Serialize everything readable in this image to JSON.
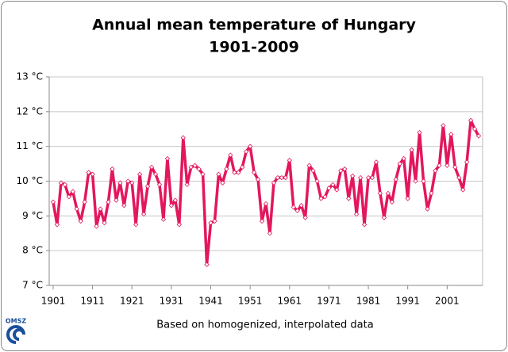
{
  "chart_data": {
    "type": "line",
    "title": "Annual mean temperature of Hungary",
    "subtitle": "1901-2009",
    "x_label": "Based on homogenized, interpolated data",
    "logo": "OMSZ",
    "x": [
      1901,
      1902,
      1903,
      1904,
      1905,
      1906,
      1907,
      1908,
      1909,
      1910,
      1911,
      1912,
      1913,
      1914,
      1915,
      1916,
      1917,
      1918,
      1919,
      1920,
      1921,
      1922,
      1923,
      1924,
      1925,
      1926,
      1927,
      1928,
      1929,
      1930,
      1931,
      1932,
      1933,
      1934,
      1935,
      1936,
      1937,
      1938,
      1939,
      1940,
      1941,
      1942,
      1943,
      1944,
      1945,
      1946,
      1947,
      1948,
      1949,
      1950,
      1951,
      1952,
      1953,
      1954,
      1955,
      1956,
      1957,
      1958,
      1959,
      1960,
      1961,
      1962,
      1963,
      1964,
      1965,
      1966,
      1967,
      1968,
      1969,
      1970,
      1971,
      1972,
      1973,
      1974,
      1975,
      1976,
      1977,
      1978,
      1979,
      1980,
      1981,
      1982,
      1983,
      1984,
      1985,
      1986,
      1987,
      1988,
      1989,
      1990,
      1991,
      1992,
      1993,
      1994,
      1995,
      1996,
      1997,
      1998,
      1999,
      2000,
      2001,
      2002,
      2003,
      2004,
      2005,
      2006,
      2007,
      2008,
      2009
    ],
    "series": [
      {
        "name": "Annual mean temperature",
        "color": "#e3175e",
        "values": [
          9.4,
          8.75,
          9.95,
          9.9,
          9.55,
          9.7,
          9.2,
          8.85,
          9.4,
          10.25,
          10.2,
          8.7,
          9.2,
          8.8,
          9.4,
          10.35,
          9.45,
          9.95,
          9.3,
          10.0,
          9.95,
          8.75,
          10.2,
          9.05,
          9.85,
          10.4,
          10.2,
          9.9,
          8.9,
          10.65,
          9.3,
          9.45,
          8.75,
          11.25,
          9.9,
          10.4,
          10.45,
          10.35,
          10.2,
          7.6,
          8.8,
          8.85,
          10.2,
          9.95,
          10.35,
          10.75,
          10.25,
          10.25,
          10.4,
          10.85,
          11.0,
          10.25,
          10.05,
          8.85,
          9.35,
          8.5,
          9.95,
          10.1,
          10.1,
          10.1,
          10.6,
          9.25,
          9.15,
          9.3,
          8.95,
          10.45,
          10.3,
          10.0,
          9.5,
          9.55,
          9.8,
          9.9,
          9.75,
          10.3,
          10.35,
          9.5,
          10.15,
          9.05,
          10.1,
          8.75,
          10.1,
          10.1,
          10.55,
          9.65,
          8.95,
          9.65,
          9.4,
          10.05,
          10.5,
          10.65,
          9.5,
          10.9,
          10.0,
          11.4,
          10.0,
          9.2,
          9.65,
          10.3,
          10.45,
          11.6,
          10.45,
          11.35,
          10.4,
          10.1,
          9.75,
          10.55,
          11.75,
          11.5,
          11.3
        ]
      }
    ],
    "xlim": [
      1900,
      2010
    ],
    "xticks": [
      1901,
      1911,
      1921,
      1931,
      1941,
      1951,
      1961,
      1971,
      1981,
      1991,
      2001
    ],
    "ylim": [
      7,
      13
    ],
    "yticks": [
      {
        "value": 7,
        "label": "7 °C"
      },
      {
        "value": 8,
        "label": "8 °C"
      },
      {
        "value": 9,
        "label": "9 °C"
      },
      {
        "value": 10,
        "label": "10 °C"
      },
      {
        "value": 11,
        "label": "11 °C"
      },
      {
        "value": 12,
        "label": "12 °C"
      },
      {
        "value": 13,
        "label": "13 °C"
      }
    ],
    "grid": true
  }
}
